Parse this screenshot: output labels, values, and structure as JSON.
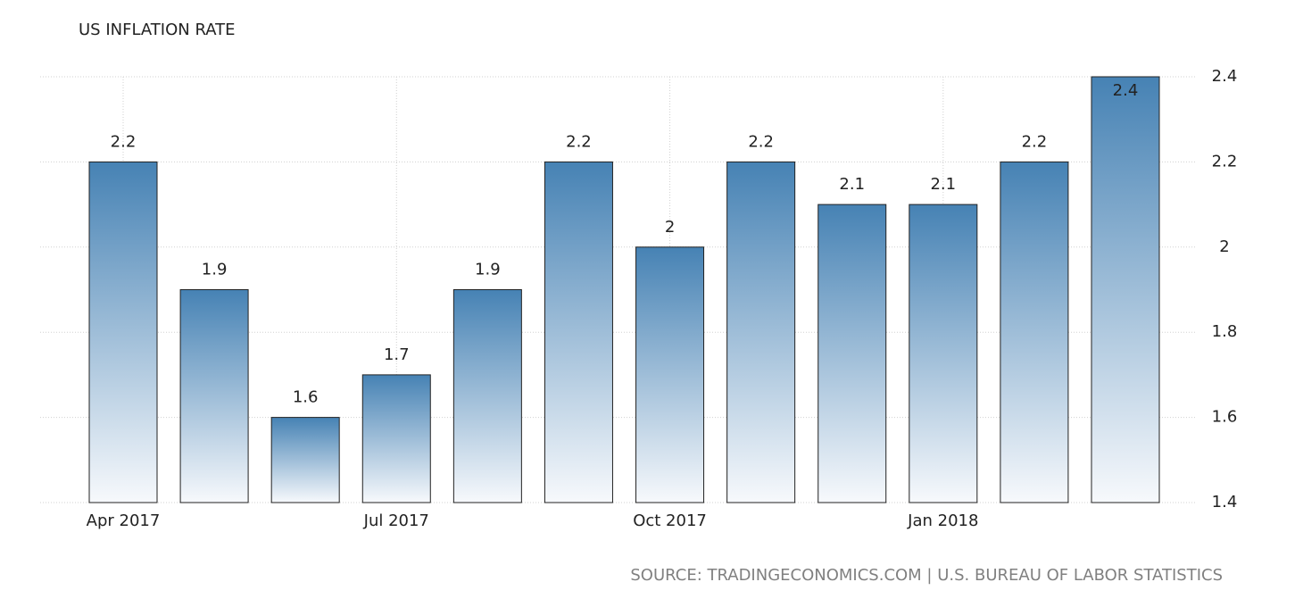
{
  "chart_data": {
    "type": "bar",
    "title": "US INFLATION RATE",
    "categories": [
      "Apr 2017",
      null,
      null,
      "Jul 2017",
      null,
      null,
      "Oct 2017",
      null,
      null,
      "Jan 2018",
      null,
      null
    ],
    "values": [
      2.2,
      1.9,
      1.6,
      1.7,
      1.9,
      2.2,
      2,
      2.2,
      2.1,
      2.1,
      2.2,
      2.4
    ],
    "color": "#4682b4",
    "ylim": [
      1.4,
      2.4
    ],
    "yticks": [
      1.4,
      1.6,
      1.8,
      2,
      2.2,
      2.4
    ],
    "grid": true,
    "source": "SOURCE: TRADINGECONOMICS.COM | U.S. BUREAU OF LABOR STATISTICS"
  }
}
